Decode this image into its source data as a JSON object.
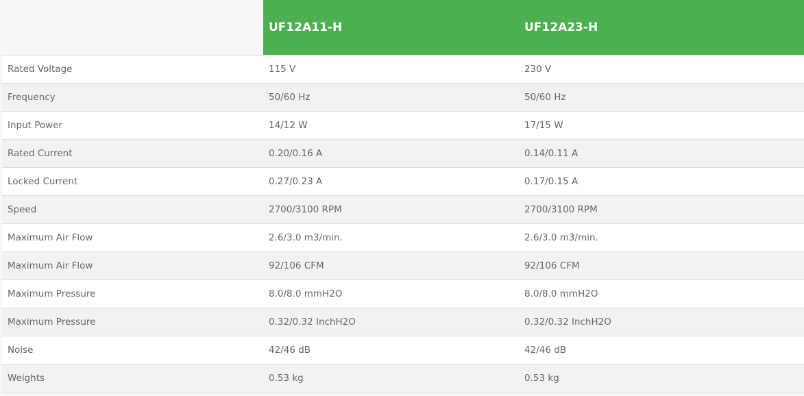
{
  "accent_color": "#4caf50",
  "models": [
    "UF12A11-H",
    "UF12A23-H"
  ],
  "rows": [
    {
      "label": "Rated Voltage",
      "values": [
        "115 V",
        "230 V"
      ]
    },
    {
      "label": "Frequency",
      "values": [
        "50/60 Hz",
        "50/60 Hz"
      ]
    },
    {
      "label": "Input Power",
      "values": [
        "14/12 W",
        "17/15 W"
      ]
    },
    {
      "label": "Rated Current",
      "values": [
        "0.20/0.16 A",
        "0.14/0.11 A"
      ]
    },
    {
      "label": "Locked Current",
      "values": [
        "0.27/0.23 A",
        "0.17/0.15 A"
      ]
    },
    {
      "label": "Speed",
      "values": [
        "2700/3100 RPM",
        "2700/3100 RPM"
      ]
    },
    {
      "label": "Maximum Air Flow",
      "values": [
        "2.6/3.0 m3/min.",
        "2.6/3.0 m3/min."
      ]
    },
    {
      "label": "Maximum Air Flow",
      "values": [
        "92/106 CFM",
        "92/106 CFM"
      ]
    },
    {
      "label": "Maximum Pressure",
      "values": [
        "8.0/8.0 mmH2O",
        "8.0/8.0 mmH2O"
      ]
    },
    {
      "label": "Maximum Pressure",
      "values": [
        "0.32/0.32 InchH2O",
        "0.32/0.32 InchH2O"
      ]
    },
    {
      "label": "Noise",
      "values": [
        "42/46 dB",
        "42/46 dB"
      ]
    },
    {
      "label": "Weights",
      "values": [
        "0.53 kg",
        "0.53 kg"
      ]
    }
  ]
}
